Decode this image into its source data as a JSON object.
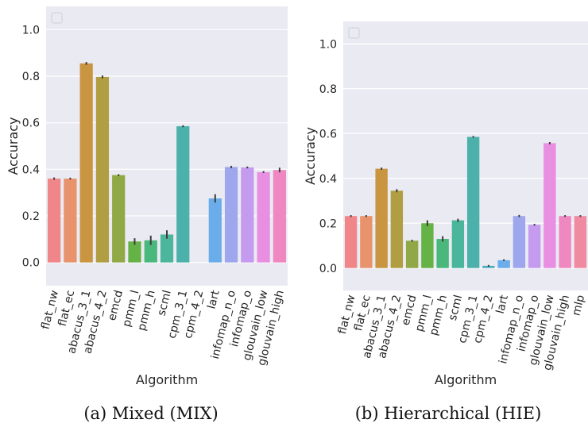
{
  "chart_data": [
    {
      "type": "bar",
      "title": "",
      "caption": "(a) Mixed (MIX)",
      "xlabel": "Algorithm",
      "ylabel": "Accuracy",
      "ylim": [
        -0.1,
        1.1
      ],
      "yticks": [
        "0.0",
        "0.2",
        "0.4",
        "0.6",
        "0.8",
        "1.0"
      ],
      "grid": true,
      "legend": "top-left (empty)",
      "categories": [
        "flat_nw",
        "flat_ec",
        "abacus_3_1",
        "abacus_4_2",
        "emcd",
        "pmm_l",
        "pmm_h",
        "scml",
        "cpm_3_1",
        "cpm_4_2",
        "lart",
        "infomap_n_o",
        "infomap_o",
        "glouvain_low",
        "glouvain_high"
      ],
      "values": [
        0.36,
        0.36,
        0.855,
        0.797,
        0.375,
        0.09,
        0.095,
        0.12,
        0.585,
        0.0,
        0.275,
        0.41,
        0.408,
        0.388,
        0.397
      ],
      "errors": [
        0.005,
        0.004,
        0.006,
        0.006,
        0.004,
        0.014,
        0.02,
        0.018,
        0.004,
        0.0,
        0.018,
        0.005,
        0.004,
        0.004,
        0.01
      ],
      "colors": [
        "#f0868a",
        "#e8936c",
        "#c99540",
        "#b19e43",
        "#90a845",
        "#65b246",
        "#4ab77d",
        "#4cb69c",
        "#4db1ab",
        "#4eaebd",
        "#6badea",
        "#9ea7ee",
        "#c59bf0",
        "#e88fe2",
        "#ef88c1"
      ]
    },
    {
      "type": "bar",
      "title": "",
      "caption": "(b) Hierarchical (HIE)",
      "xlabel": "Algorithm",
      "ylabel": "Accuracy",
      "ylim": [
        -0.1,
        1.1
      ],
      "yticks": [
        "0.0",
        "0.2",
        "0.4",
        "0.6",
        "0.8",
        "1.0"
      ],
      "grid": true,
      "legend": "top-left (empty)",
      "categories": [
        "flat_nw",
        "flat_ec",
        "abacus_3_1",
        "abacus_4_2",
        "emcd",
        "pmm_l",
        "pmm_h",
        "scml",
        "cpm_3_1",
        "cpm_4_2",
        "lart",
        "infomap_n_o",
        "infomap_o",
        "glouvain_low",
        "glouvain_high",
        "mlp"
      ],
      "values": [
        0.232,
        0.232,
        0.443,
        0.345,
        0.122,
        0.2,
        0.13,
        0.213,
        0.585,
        0.01,
        0.035,
        0.232,
        0.193,
        0.557,
        0.232,
        0.232
      ],
      "errors": [
        0.004,
        0.004,
        0.005,
        0.007,
        0.004,
        0.013,
        0.012,
        0.007,
        0.004,
        0.004,
        0.004,
        0.005,
        0.004,
        0.005,
        0.004,
        0.004
      ],
      "colors": [
        "#f0868a",
        "#e8936c",
        "#c99540",
        "#b19e43",
        "#90a845",
        "#65b246",
        "#4ab77d",
        "#4cb69c",
        "#4db1ab",
        "#4eaebd",
        "#6badea",
        "#9ea7ee",
        "#c59bf0",
        "#e88fe2",
        "#ef88c1",
        "#f08aa0"
      ]
    }
  ]
}
